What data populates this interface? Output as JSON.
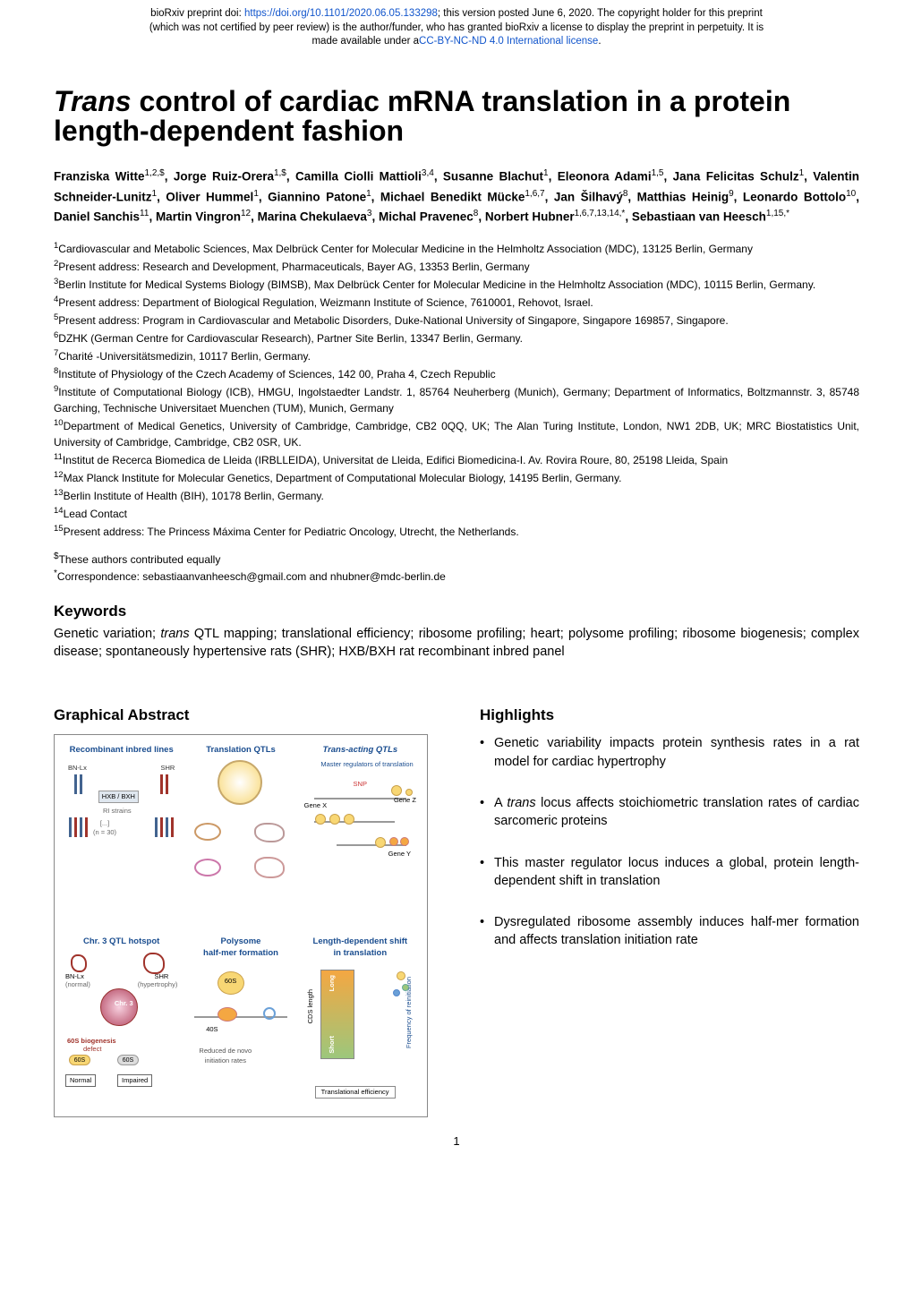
{
  "preprint": {
    "prefix": "bioRxiv preprint doi: ",
    "doi_link": "https://doi.org/10.1101/2020.06.05.133298",
    "line1_tail": "; this version posted June 6, 2020. The copyright holder for this preprint",
    "line2": "(which was not certified by peer review) is the author/funder, who has granted bioRxiv a license to display the preprint in perpetuity. It is",
    "line3_lead": "made available under a",
    "license_link": "CC-BY-NC-ND 4.0 International license",
    "line3_tail": "."
  },
  "title": {
    "italic": "Trans",
    "rest": " control of cardiac mRNA translation in a protein length-dependent fashion"
  },
  "authors_html": "Franziska Witte<sup>1,2,$</sup>, Jorge Ruiz-Orera<sup>1,$</sup>, Camilla Ciolli Mattioli<sup>3,4</sup>, Susanne Blachut<sup>1</sup>, Eleonora Adami<sup>1,5</sup>, Jana Felicitas Schulz<sup>1</sup>, Valentin Schneider-Lunitz<sup>1</sup>, Oliver Hummel<sup>1</sup>, Giannino Patone<sup>1</sup>, Michael Benedikt Mücke<sup>1,6,7</sup>, Jan Šilhavý<sup>8</sup>, Matthias Heinig<sup>9</sup>, Leonardo Bottolo<sup>10</sup>, Daniel Sanchis<sup>11</sup>, Martin Vingron<sup>12</sup>, Marina Chekulaeva<sup>3</sup>, Michal Pravenec<sup>8</sup>, Norbert Hubner<sup>1,6,7,13,14,*</sup>, Sebastiaan van Heesch<sup>1,15,*</sup>",
  "affiliations": [
    {
      "n": "1",
      "t": "Cardiovascular and Metabolic Sciences, Max Delbrück Center for Molecular Medicine in the Helmholtz Association (MDC), 13125 Berlin, Germany"
    },
    {
      "n": "2",
      "t": "Present address: Research and Development, Pharmaceuticals, Bayer AG, 13353 Berlin, Germany"
    },
    {
      "n": "3",
      "t": "Berlin Institute for Medical Systems Biology (BIMSB), Max Delbrück Center for Molecular Medicine in the Helmholtz Association (MDC), 10115 Berlin, Germany."
    },
    {
      "n": "4",
      "t": "Present address: Department of Biological Regulation, Weizmann Institute of Science, 7610001, Rehovot, Israel."
    },
    {
      "n": "5",
      "t": "Present address: Program in Cardiovascular and Metabolic Disorders, Duke-National University of Singapore, Singapore 169857, Singapore."
    },
    {
      "n": "6",
      "t": "DZHK (German Centre for Cardiovascular Research), Partner Site Berlin, 13347 Berlin, Germany."
    },
    {
      "n": "7",
      "t": "Charité -Universitätsmedizin, 10117 Berlin, Germany."
    },
    {
      "n": "8",
      "t": "Institute of Physiology of the Czech Academy of Sciences, 142 00, Praha 4, Czech Republic"
    },
    {
      "n": "9",
      "t": "Institute of Computational Biology (ICB), HMGU, Ingolstaedter Landstr. 1, 85764 Neuherberg (Munich), Germany; Department of Informatics, Boltzmannstr. 3, 85748 Garching, Technische Universitaet Muenchen (TUM), Munich, Germany"
    },
    {
      "n": "10",
      "t": "Department of Medical Genetics, University of Cambridge, Cambridge, CB2 0QQ, UK; The Alan Turing Institute, London, NW1 2DB, UK; MRC Biostatistics Unit, University of Cambridge, Cambridge, CB2 0SR, UK."
    },
    {
      "n": "11",
      "t": "Institut de Recerca Biomedica de Lleida (IRBLLEIDA), Universitat de Lleida, Edifici Biomedicina-I. Av. Rovira Roure, 80, 25198 Lleida, Spain"
    },
    {
      "n": "12",
      "t": "Max Planck Institute for Molecular Genetics, Department of Computational Molecular Biology, 14195 Berlin, Germany."
    },
    {
      "n": "13",
      "t": "Berlin Institute of Health (BIH), 10178 Berlin, Germany."
    },
    {
      "n": "14",
      "t": "Lead Contact"
    },
    {
      "n": "15",
      "t": "Present address: The Princess Máxima Center for Pediatric Oncology, Utrecht, the Netherlands."
    }
  ],
  "contrib": "These authors contributed equally",
  "contrib_symbol": "$",
  "correspondence": "Correspondence: sebastiaanvanheesch@gmail.com and nhubner@mdc-berlin.de",
  "correspondence_symbol": "*",
  "keywords": {
    "heading": "Keywords",
    "body_lead": "Genetic variation; ",
    "body_it": "trans",
    "body_tail": " QTL mapping; translational efficiency; ribosome profiling; heart; polysome profiling; ribosome biogenesis; complex disease; spontaneously hypertensive rats (SHR); HXB/BXH rat recombinant inbred panel"
  },
  "graphical_abstract": {
    "heading": "Graphical Abstract",
    "panels": {
      "top_left": "Recombinant inbred lines",
      "top_mid": "Translation QTLs",
      "top_right": "Trans-acting QTLs",
      "top_right_sub": "Master regulators of translation",
      "bot_left": "Chr. 3 QTL hotspot",
      "bot_mid": "Polysome\nhalf-mer formation",
      "bot_right": "Length-dependent shift\nin translation"
    },
    "labels": {
      "bn": "BN-Lx",
      "shr": "SHR",
      "hxb": "HXB / BXH",
      "ri": "RI strains",
      "n30": "[...]\n(n = 30)",
      "snp": "SNP",
      "genex": "Gene X",
      "geney": "Gene Y",
      "genez": "Gene Z",
      "normal": "(normal)",
      "hyper": "(hypertrophy)",
      "chr3": "Chr. 3",
      "biogenesis": "60S biogenesis",
      "defect": "defect",
      "sixty": "60S",
      "forty": "40S",
      "reduced": "Reduced de novo\ninitiation rates",
      "long": "Long",
      "short": "Short",
      "cds": "CDS length",
      "te": "Translational efficiency",
      "freq": "Frequency of reinitiation",
      "normal_box": "Normal",
      "impaired_box": "Impaired"
    },
    "colors": {
      "panel_caption": "#1a4d8f",
      "orange": "#f4a742",
      "yellow": "#f8d774",
      "purple": "#9b7bb8",
      "pink": "#e8a2c4",
      "blue": "#6aa0d8",
      "green": "#9cc77c",
      "dark_red": "#a0332b",
      "box_border": "#888888"
    }
  },
  "highlights": {
    "heading": "Highlights",
    "items": [
      {
        "pre": "Genetic variability impacts protein synthesis rates in a rat model for cardiac hypertrophy"
      },
      {
        "pre": "A ",
        "it": "trans",
        "post": " locus affects stoichiometric translation rates of cardiac sarcomeric proteins"
      },
      {
        "pre": "This master regulator locus induces a global, protein length- dependent shift in translation"
      },
      {
        "pre": "Dysregulated ribosome assembly induces half-mer formation and affects translation initiation rate"
      }
    ]
  },
  "page_number": "1"
}
